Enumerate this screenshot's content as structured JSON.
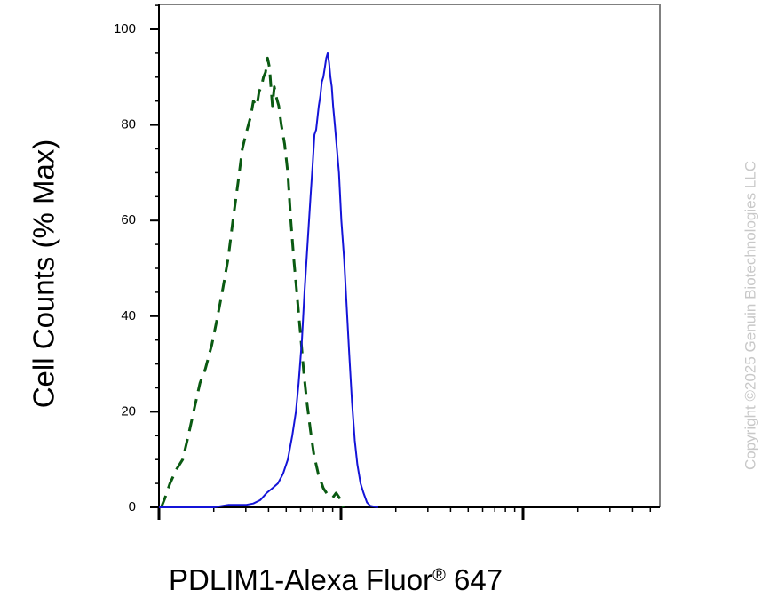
{
  "chart_data": {
    "type": "line",
    "ylabel": "Cell Counts (% Max)",
    "xlabel_main": "PDLIM1-Alexa Fluor",
    "xlabel_sup": "®",
    "xlabel_tail": " 647",
    "watermark": "Copyright ©2025 Genuin Biotechnologies LLC",
    "xscale": "log",
    "xlim": [
      1,
      16
    ],
    "ylim": [
      0,
      105
    ],
    "yticks": [
      0,
      20,
      40,
      60,
      80,
      100
    ],
    "ytick_labels": [
      "0",
      "20",
      "40",
      "60",
      "80",
      "100"
    ],
    "xticks_major": [
      1,
      10
    ],
    "x_tick_labels_shown": false,
    "series": [
      {
        "style": "dashed",
        "color": "#0a5a12",
        "points": [
          [
            1.03,
            0
          ],
          [
            1.08,
            2
          ],
          [
            1.15,
            5
          ],
          [
            1.25,
            8
          ],
          [
            1.35,
            10
          ],
          [
            1.45,
            15
          ],
          [
            1.55,
            20
          ],
          [
            1.68,
            26
          ],
          [
            1.8,
            29
          ],
          [
            1.95,
            34
          ],
          [
            2.1,
            40
          ],
          [
            2.25,
            46
          ],
          [
            2.4,
            52
          ],
          [
            2.55,
            60
          ],
          [
            2.72,
            68
          ],
          [
            2.87,
            75
          ],
          [
            3.0,
            78
          ],
          [
            3.1,
            80
          ],
          [
            3.2,
            82
          ],
          [
            3.3,
            85
          ],
          [
            3.45,
            84
          ],
          [
            3.55,
            87
          ],
          [
            3.65,
            88
          ],
          [
            3.75,
            90
          ],
          [
            3.85,
            91
          ],
          [
            3.95,
            94
          ],
          [
            4.05,
            92
          ],
          [
            4.12,
            88
          ],
          [
            4.2,
            84
          ],
          [
            4.3,
            88
          ],
          [
            4.4,
            86
          ],
          [
            4.55,
            84
          ],
          [
            4.7,
            80
          ],
          [
            4.9,
            76
          ],
          [
            5.1,
            70
          ],
          [
            5.3,
            60
          ],
          [
            5.5,
            52
          ],
          [
            5.75,
            44
          ],
          [
            6.0,
            36
          ],
          [
            6.25,
            28
          ],
          [
            6.5,
            22
          ],
          [
            6.8,
            16
          ],
          [
            7.1,
            11
          ],
          [
            7.5,
            7
          ],
          [
            8.0,
            4
          ],
          [
            8.5,
            2.5
          ],
          [
            9.0,
            2
          ],
          [
            9.4,
            3
          ],
          [
            9.8,
            2
          ],
          [
            10.1,
            1
          ],
          [
            10.3,
            0
          ]
        ]
      },
      {
        "style": "solid",
        "color": "#1414d8",
        "points": [
          [
            1.0,
            0
          ],
          [
            2.0,
            0
          ],
          [
            2.4,
            0.5
          ],
          [
            3.0,
            0.5
          ],
          [
            3.3,
            0.8
          ],
          [
            3.6,
            1.5
          ],
          [
            3.9,
            3
          ],
          [
            4.2,
            4
          ],
          [
            4.5,
            5
          ],
          [
            4.8,
            7
          ],
          [
            5.1,
            10
          ],
          [
            5.4,
            15
          ],
          [
            5.65,
            20
          ],
          [
            5.85,
            26
          ],
          [
            6.1,
            35
          ],
          [
            6.3,
            45
          ],
          [
            6.55,
            55
          ],
          [
            6.8,
            65
          ],
          [
            7.0,
            72
          ],
          [
            7.15,
            78
          ],
          [
            7.3,
            79
          ],
          [
            7.45,
            82
          ],
          [
            7.55,
            84
          ],
          [
            7.7,
            86
          ],
          [
            7.85,
            89
          ],
          [
            8.0,
            90
          ],
          [
            8.15,
            92
          ],
          [
            8.3,
            94
          ],
          [
            8.45,
            95
          ],
          [
            8.6,
            93
          ],
          [
            8.75,
            90
          ],
          [
            8.9,
            88
          ],
          [
            9.05,
            84
          ],
          [
            9.25,
            80
          ],
          [
            9.5,
            75
          ],
          [
            9.75,
            70
          ],
          [
            10.05,
            60
          ],
          [
            10.4,
            52
          ],
          [
            10.75,
            42
          ],
          [
            11.1,
            32
          ],
          [
            11.5,
            22
          ],
          [
            11.9,
            14
          ],
          [
            12.3,
            9
          ],
          [
            12.8,
            5
          ],
          [
            13.3,
            3
          ],
          [
            13.9,
            1
          ],
          [
            14.5,
            0.3
          ],
          [
            16,
            0
          ]
        ]
      }
    ]
  }
}
